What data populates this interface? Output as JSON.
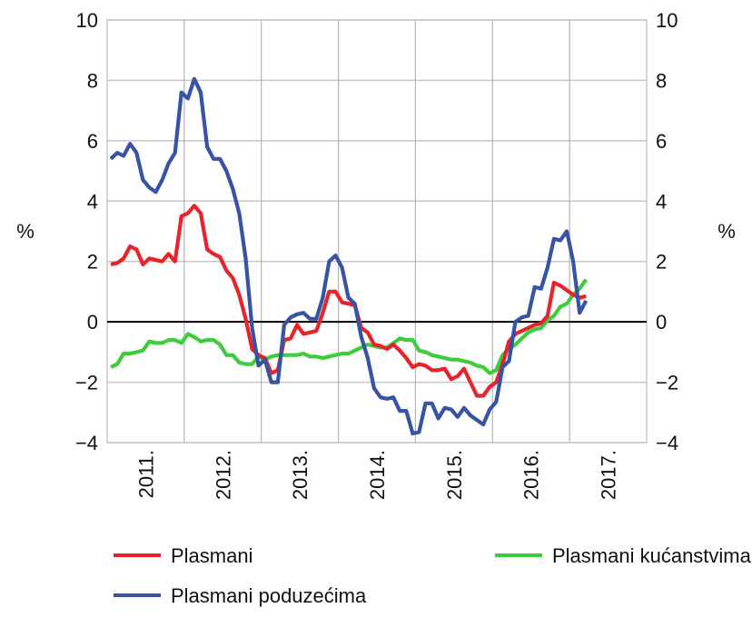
{
  "chart_data": {
    "type": "line",
    "title": "",
    "ylabel_left": "%",
    "ylabel_right": "%",
    "ylim": [
      -4,
      10
    ],
    "yticks": [
      "−4",
      "−2",
      "0",
      "2",
      "4",
      "6",
      "8",
      "10"
    ],
    "ytick_values": [
      -4,
      -2,
      0,
      2,
      4,
      6,
      8,
      10
    ],
    "x_start": "2011-01",
    "x_frequency": "monthly",
    "x_tick_labels": [
      "2011.",
      "2012.",
      "2013.",
      "2014.",
      "2015.",
      "2016.",
      "2017."
    ],
    "grid": true,
    "legend_position": "bottom",
    "series": [
      {
        "name": "Plasmani",
        "color": "#e8232a",
        "values": [
          1.9,
          1.95,
          2.1,
          2.5,
          2.4,
          1.9,
          2.1,
          2.05,
          2.0,
          2.25,
          2.0,
          3.5,
          3.6,
          3.85,
          3.6,
          2.4,
          2.25,
          2.15,
          1.7,
          1.45,
          0.9,
          0.1,
          -0.9,
          -1.1,
          -1.2,
          -1.7,
          -1.6,
          -0.6,
          -0.55,
          -0.1,
          -0.4,
          -0.35,
          -0.3,
          0.3,
          1.0,
          1.0,
          0.65,
          0.6,
          0.55,
          -0.2,
          -0.35,
          -0.75,
          -0.8,
          -0.9,
          -0.75,
          -0.95,
          -1.2,
          -1.5,
          -1.4,
          -1.45,
          -1.6,
          -1.6,
          -1.55,
          -1.9,
          -1.8,
          -1.55,
          -2.0,
          -2.45,
          -2.45,
          -2.15,
          -2.0,
          -1.4,
          -0.65,
          -0.4,
          -0.3,
          -0.2,
          -0.1,
          -0.05,
          0.2,
          1.3,
          1.2,
          1.05,
          0.9,
          0.8,
          0.85
        ]
      },
      {
        "name": "Plasmani kućanstvima",
        "color": "#3ccc3c",
        "values": [
          -1.5,
          -1.4,
          -1.05,
          -1.05,
          -1.0,
          -0.95,
          -0.65,
          -0.7,
          -0.7,
          -0.6,
          -0.6,
          -0.7,
          -0.4,
          -0.5,
          -0.65,
          -0.6,
          -0.6,
          -0.75,
          -1.1,
          -1.1,
          -1.35,
          -1.4,
          -1.4,
          -1.15,
          -1.25,
          -1.15,
          -1.1,
          -1.1,
          -1.1,
          -1.1,
          -1.05,
          -1.15,
          -1.15,
          -1.2,
          -1.15,
          -1.1,
          -1.05,
          -1.05,
          -0.95,
          -0.85,
          -0.75,
          -0.8,
          -0.85,
          -0.85,
          -0.7,
          -0.55,
          -0.6,
          -0.6,
          -0.95,
          -1.0,
          -1.1,
          -1.15,
          -1.2,
          -1.25,
          -1.25,
          -1.3,
          -1.35,
          -1.45,
          -1.5,
          -1.7,
          -1.6,
          -1.1,
          -0.9,
          -0.75,
          -0.55,
          -0.35,
          -0.25,
          -0.2,
          0.05,
          0.2,
          0.5,
          0.6,
          0.9,
          1.1,
          1.4
        ]
      },
      {
        "name": "Plasmani poduzećima",
        "color": "#3653a4",
        "values": [
          5.4,
          5.6,
          5.5,
          5.9,
          5.6,
          4.7,
          4.45,
          4.3,
          4.7,
          5.25,
          5.6,
          7.6,
          7.4,
          8.05,
          7.6,
          5.8,
          5.4,
          5.4,
          5.0,
          4.4,
          3.6,
          2.1,
          -0.2,
          -1.45,
          -1.25,
          -2.0,
          -2.0,
          -0.1,
          0.15,
          0.25,
          0.3,
          0.1,
          0.1,
          0.8,
          2.0,
          2.2,
          1.8,
          0.8,
          0.6,
          -0.5,
          -1.2,
          -2.2,
          -2.5,
          -2.55,
          -2.5,
          -2.95,
          -2.95,
          -3.7,
          -3.65,
          -2.7,
          -2.7,
          -3.2,
          -2.85,
          -2.9,
          -3.15,
          -2.85,
          -3.1,
          -3.25,
          -3.4,
          -2.9,
          -2.65,
          -1.5,
          -1.3,
          0.0,
          0.15,
          0.2,
          1.15,
          1.1,
          1.8,
          2.75,
          2.7,
          3.0,
          2.0,
          0.3,
          0.7
        ]
      }
    ]
  }
}
